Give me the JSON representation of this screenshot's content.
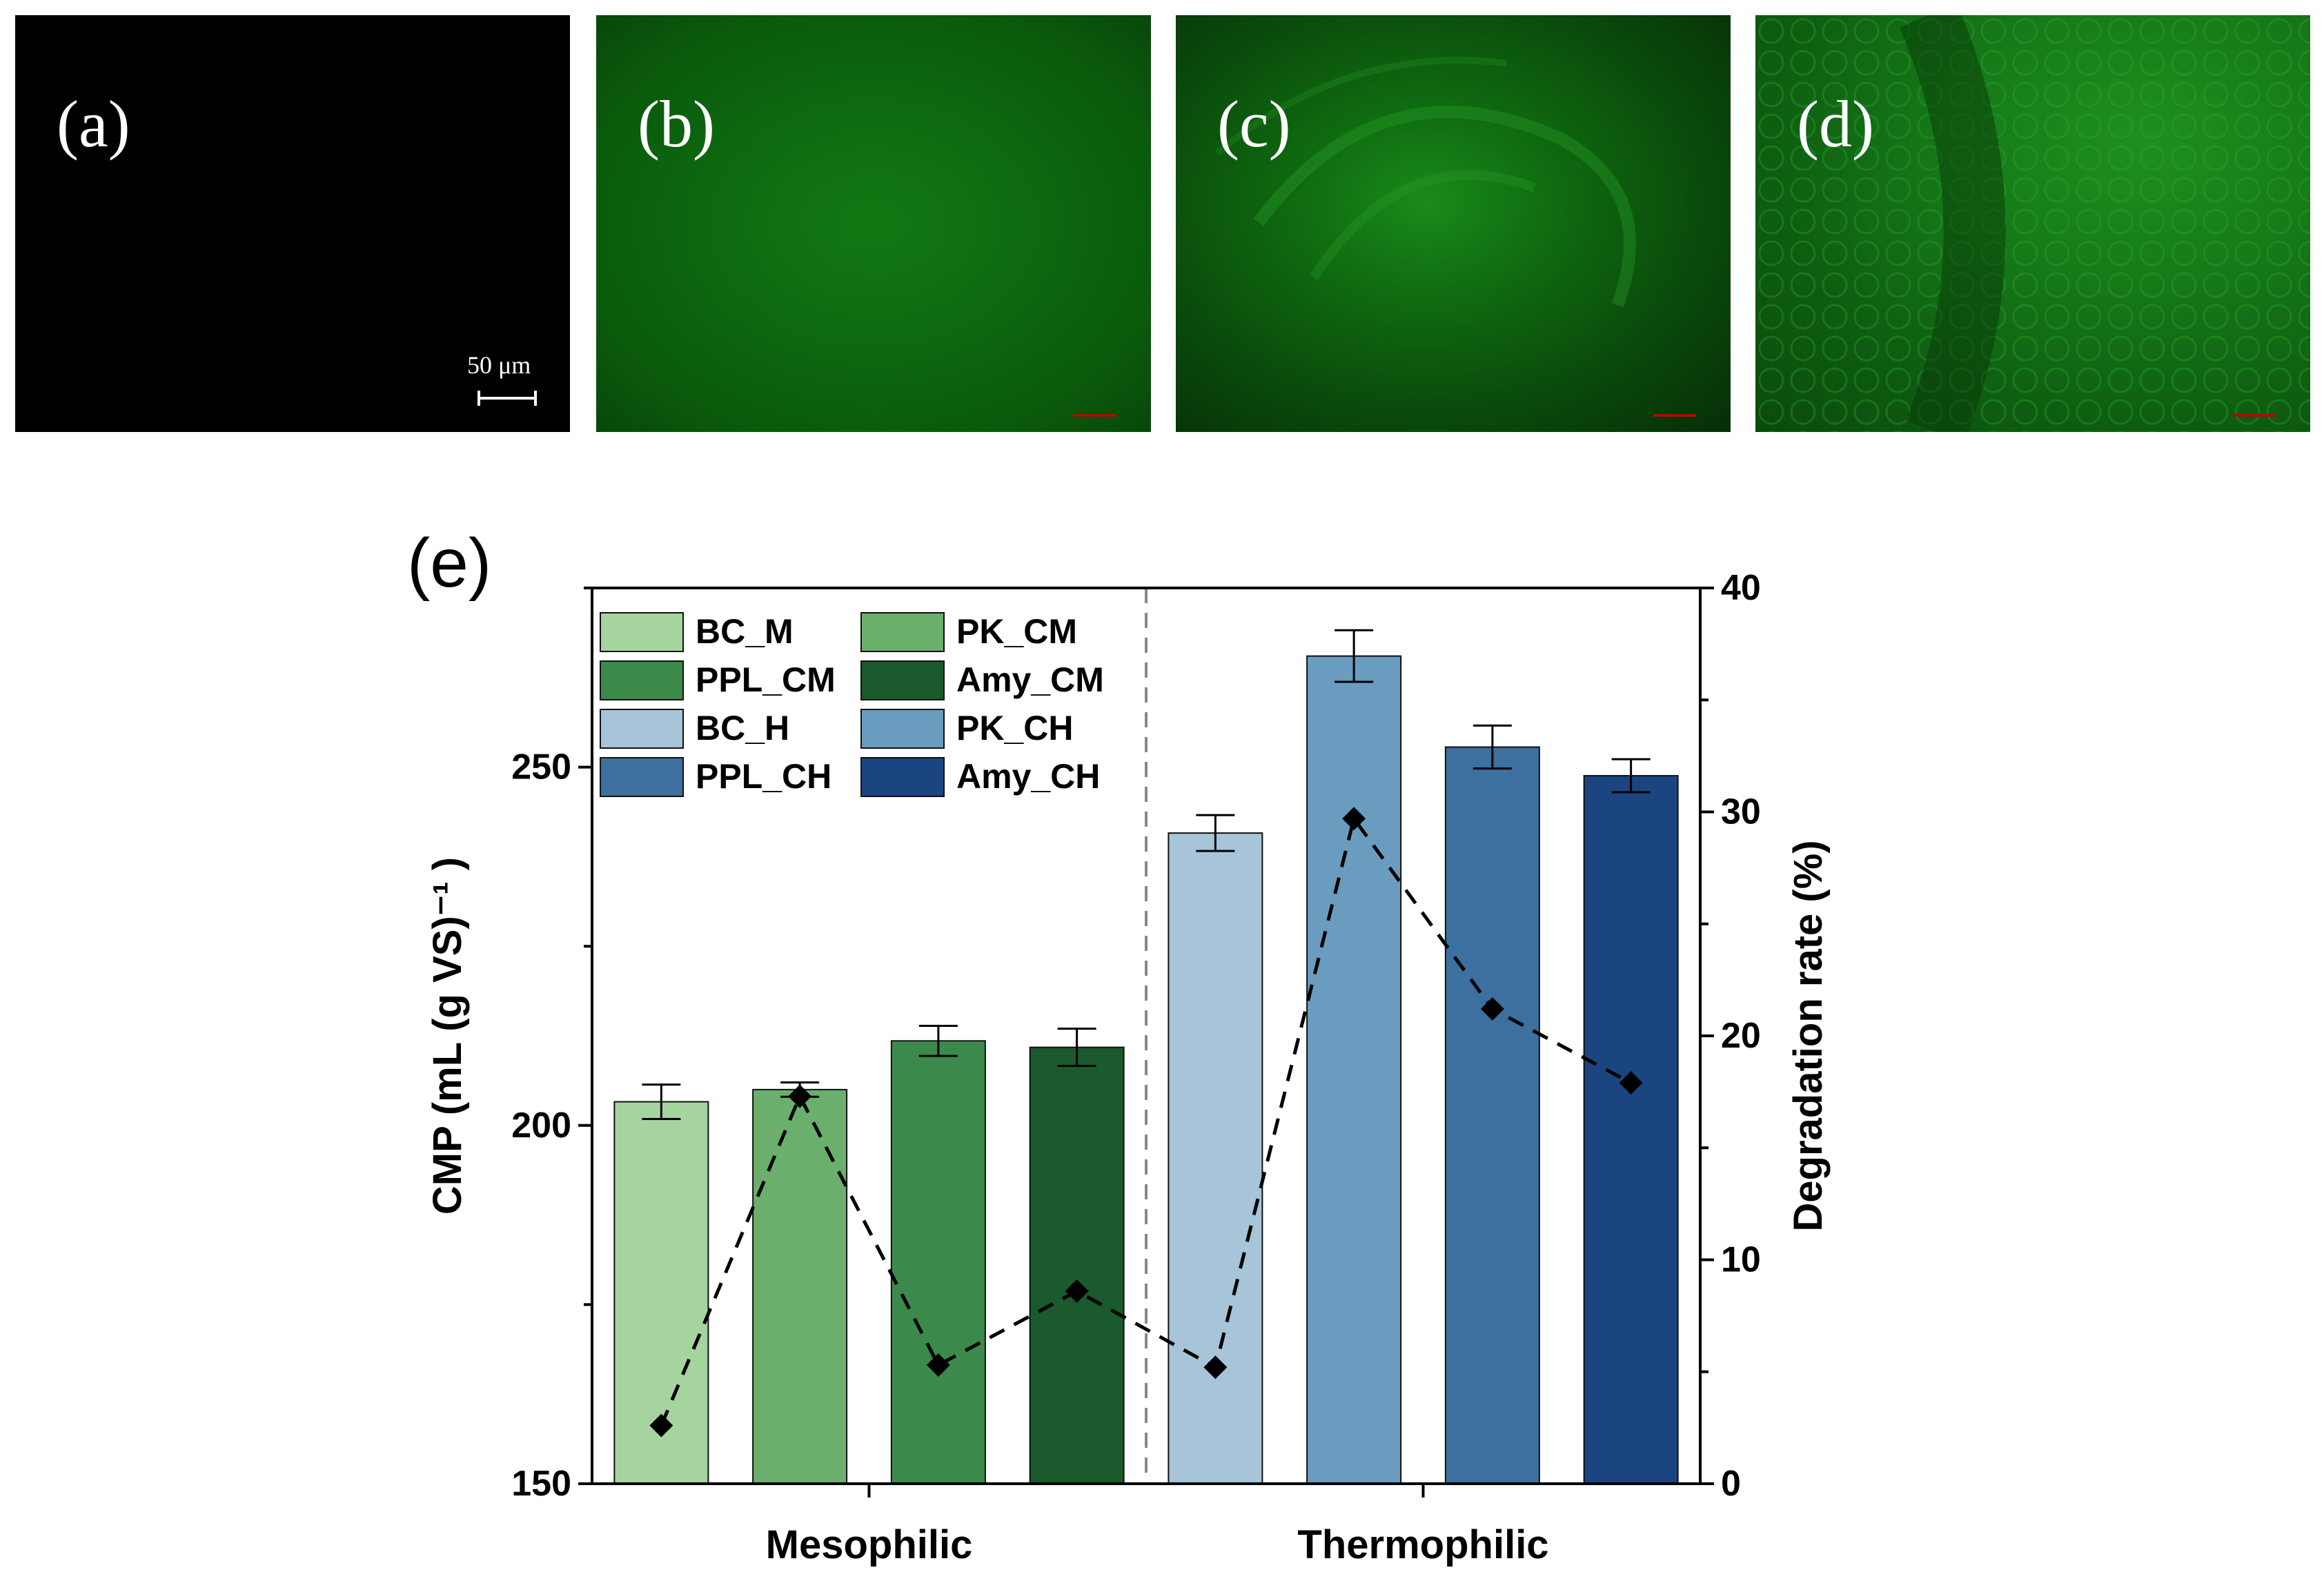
{
  "panels": [
    {
      "label": "(a)",
      "scale_bar": "50 μm",
      "tone": "dark"
    },
    {
      "label": "(b)",
      "tone": "green-uniform"
    },
    {
      "label": "(c)",
      "tone": "green-swirl"
    },
    {
      "label": "(d)",
      "tone": "green-cells"
    }
  ],
  "chart_panel_label": "(e)",
  "chart_data": {
    "type": "bar",
    "categories": [
      "BC_M",
      "PK_CM",
      "PPL_CM",
      "Amy_CM",
      "BC_H",
      "PK_CH",
      "PPL_CH",
      "Amy_CH"
    ],
    "groups": [
      "Mesophilic",
      "Thermophilic"
    ],
    "group_of_category": [
      "Mesophilic",
      "Mesophilic",
      "Mesophilic",
      "Mesophilic",
      "Thermophilic",
      "Thermophilic",
      "Thermophilic",
      "Thermophilic"
    ],
    "series": [
      {
        "name": "CMP",
        "axis": "left",
        "type": "bar",
        "values": [
          203.3,
          205.0,
          211.8,
          210.9,
          240.8,
          265.5,
          252.8,
          248.8
        ],
        "errors": [
          2.4,
          1.0,
          2.1,
          2.6,
          2.5,
          3.6,
          3.0,
          2.3
        ]
      },
      {
        "name": "Degradation rate",
        "axis": "right",
        "type": "line",
        "values": [
          2.6,
          17.3,
          5.3,
          8.6,
          5.2,
          29.7,
          21.2,
          17.9
        ],
        "errors": [
          0.4,
          0.3,
          0.3,
          0.4,
          0.4,
          0.4,
          0.3,
          0.2
        ]
      }
    ],
    "bar_colors": [
      "#a6d49f",
      "#6aaf6c",
      "#3b8a4c",
      "#1a5a2c",
      "#a7c4d9",
      "#6a9cc0",
      "#3d6f9f",
      "#1b4580"
    ],
    "ylabel": "CMP (mL (g VS)⁻¹ )",
    "y2label": "Degradation rate (%)",
    "ylim": [
      150,
      275
    ],
    "y2lim": [
      0,
      40
    ],
    "yticks": [
      "150",
      "200",
      "250"
    ],
    "y2ticks": [
      "0",
      "10",
      "20",
      "30",
      "40"
    ],
    "legend": [
      "BC_M",
      "PK_CM",
      "PPL_CM",
      "Amy_CM",
      "BC_H",
      "PK_CH",
      "PPL_CH",
      "Amy_CH"
    ],
    "legend_position": "top-left",
    "separator": "dashed"
  }
}
